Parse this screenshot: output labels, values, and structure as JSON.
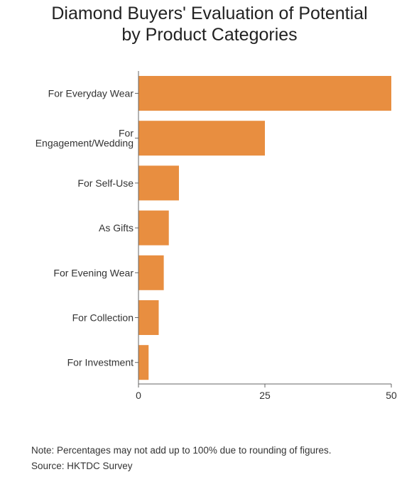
{
  "chart_data": {
    "type": "bar",
    "orientation": "horizontal",
    "title_lines": [
      "Diamond Buyers' Evaluation of Potential",
      "by Product Categories"
    ],
    "categories": [
      "For Everyday Wear",
      "For Engagement/Wedding",
      "For Self-Use",
      "As Gifts",
      "For Evening Wear",
      "For Collection",
      "For Investment"
    ],
    "category_label_lines": [
      [
        "For Everyday Wear"
      ],
      [
        "For",
        "Engagement/Wedding"
      ],
      [
        "For Self-Use"
      ],
      [
        "As Gifts"
      ],
      [
        "For Evening Wear"
      ],
      [
        "For Collection"
      ],
      [
        "For Investment"
      ]
    ],
    "values": [
      50,
      25,
      8,
      6,
      5,
      4,
      2
    ],
    "x_ticks": [
      0,
      25,
      50
    ],
    "xlim": [
      0,
      50
    ],
    "bar_color": "#E88E40",
    "grid": false
  },
  "notes": {
    "note": "Note: Percentages may not add up to 100% due to rounding of figures.",
    "source": "Source: HKTDC Survey"
  }
}
